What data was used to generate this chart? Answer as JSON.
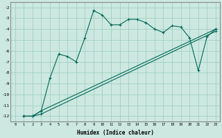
{
  "xlabel": "Humidex (Indice chaleur)",
  "ylabel": "",
  "background_color": "#cce8e0",
  "line_color": "#006655",
  "grid_color": "#99ccbb",
  "xlim": [
    -0.5,
    23.5
  ],
  "ylim": [
    -12.5,
    -1.5
  ],
  "yticks": [
    -12,
    -11,
    -10,
    -9,
    -8,
    -7,
    -6,
    -5,
    -4,
    -3,
    -2
  ],
  "xticks": [
    0,
    1,
    2,
    3,
    4,
    5,
    6,
    7,
    8,
    9,
    10,
    11,
    12,
    13,
    14,
    15,
    16,
    17,
    18,
    19,
    20,
    21,
    22,
    23
  ],
  "line1_x": [
    1,
    2,
    3,
    4,
    5,
    6,
    7,
    8,
    9,
    10,
    11,
    12,
    13,
    14,
    15,
    16,
    17,
    18,
    19,
    20,
    21,
    22,
    23
  ],
  "line1_y": [
    -12,
    -12,
    -11.5,
    -8.5,
    -6.3,
    -6.5,
    -7.0,
    -4.8,
    -2.3,
    -2.7,
    -3.6,
    -3.6,
    -3.1,
    -3.1,
    -3.4,
    -4.0,
    -4.3,
    -3.7,
    -3.8,
    -4.8,
    -7.8,
    -4.7,
    -4.0
  ],
  "line2_x": [
    1,
    2,
    3,
    23
  ],
  "line2_y": [
    -12,
    -12,
    -11.5,
    -4.0
  ],
  "line3_x": [
    1,
    2,
    3,
    23
  ],
  "line3_y": [
    -12,
    -12,
    -11.8,
    -4.2
  ]
}
